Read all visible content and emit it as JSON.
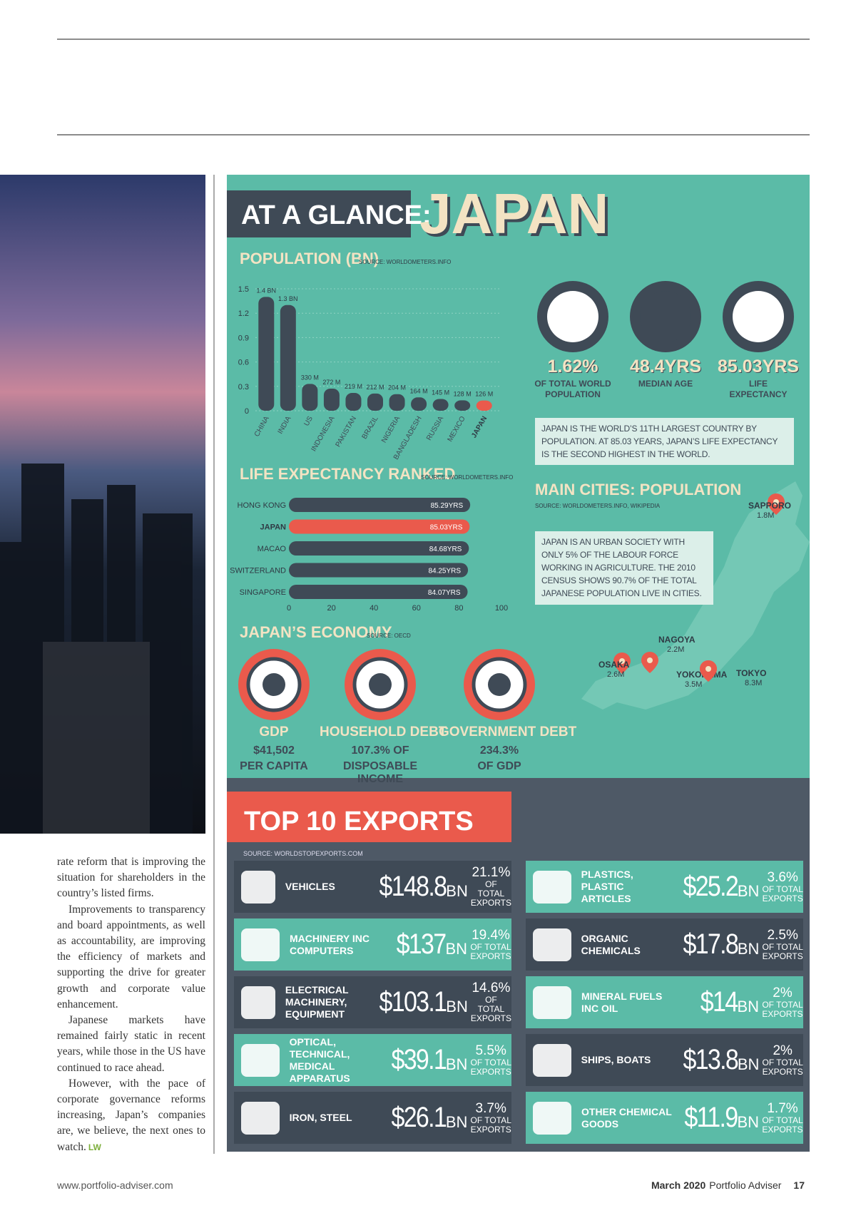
{
  "article": {
    "paragraphs": [
      "rate reform that is improving the situation for shareholders in the country’s listed firms.",
      "Improvements to transparency and board appointments, as well as accountability, are improving the efficiency of markets and supporting the drive for greater growth and corporate value enhancement.",
      "Japanese markets have remained fairly static in recent years, while those in the US have continued to race ahead.",
      "However, with the pace of corporate governance reforms increasing, Japan’s companies are, we believe, the next ones to watch."
    ],
    "signature": "LW"
  },
  "infographic": {
    "title_prefix": "AT A GLANCE:",
    "title": "JAPAN",
    "population": {
      "type": "bar",
      "title": "POPULATION (BN)",
      "source": "SOURCE: WORLDOMETERS.INFO",
      "categories": [
        "CHINA",
        "INDIA",
        "US",
        "INDONESIA",
        "PAKISTAN",
        "BRAZIL",
        "NIGERIA",
        "BANGLADESH",
        "RUSSIA",
        "MEXICO",
        "JAPAN"
      ],
      "values": [
        1.4,
        1.3,
        0.33,
        0.272,
        0.219,
        0.212,
        0.204,
        0.164,
        0.145,
        0.128,
        0.126
      ],
      "value_labels": [
        "1.4 BN",
        "1.3 BN",
        "330 M",
        "272 M",
        "219 M",
        "212 M",
        "204 M",
        "164 M",
        "145 M",
        "128 M",
        "126 M"
      ],
      "colors": [
        "#3f4a56",
        "#3f4a56",
        "#3f4a56",
        "#3f4a56",
        "#3f4a56",
        "#3f4a56",
        "#3f4a56",
        "#3f4a56",
        "#3f4a56",
        "#3f4a56",
        "#ea5a4c"
      ],
      "ylim": [
        0,
        1.5
      ],
      "yticks": [
        0,
        0.3,
        0.6,
        0.9,
        1.2,
        1.5
      ],
      "grid": true
    },
    "stats": [
      {
        "value": "1.62%",
        "label": "OF TOTAL WORLD POPULATION"
      },
      {
        "value": "48.4YRS",
        "label": "MEDIAN AGE"
      },
      {
        "value": "85.03YRS",
        "label": "LIFE EXPECTANCY"
      }
    ],
    "population_note": "JAPAN IS THE WORLD’S 11TH LARGEST COUNTRY BY POPULATION. AT 85.03 YEARS, JAPAN’S LIFE EXPECTANCY IS THE SECOND HIGHEST IN THE WORLD.",
    "life_expectancy": {
      "type": "hbar",
      "title": "LIFE EXPECTANCY RANKED",
      "source": "SOURCE: WORLDOMETERS.INFO",
      "categories": [
        "HONG KONG",
        "JAPAN",
        "MACAO",
        "SWITZERLAND",
        "SINGAPORE"
      ],
      "values": [
        85.29,
        85.03,
        84.68,
        84.25,
        84.07
      ],
      "value_labels": [
        "85.29YRS",
        "85.03YRS",
        "84.68YRS",
        "84.25YRS",
        "84.07YRS"
      ],
      "colors": [
        "#3f4a56",
        "#ea5a4c",
        "#3f4a56",
        "#3f4a56",
        "#3f4a56"
      ],
      "xlim": [
        0,
        100
      ],
      "xticks": [
        0,
        20,
        40,
        60,
        80,
        100
      ]
    },
    "economy": {
      "title": "JAPAN’S ECONOMY",
      "source": "SOURCE: OECD",
      "items": [
        {
          "label": "GDP",
          "value": "$41,502",
          "detail": "PER CAPITA"
        },
        {
          "label": "HOUSEHOLD DEBT",
          "value": "107.3% OF",
          "detail": "DISPOSABLE INCOME"
        },
        {
          "label": "GOVERNMENT DEBT",
          "value": "234.3%",
          "detail": "OF GDP"
        }
      ]
    },
    "cities": {
      "title": "MAIN CITIES: POPULATION",
      "source": "SOURCE: WORLDOMETERS.INFO, WIKIPEDIA",
      "note": "JAPAN IS AN URBAN SOCIETY WITH ONLY 5% OF THE LABOUR FORCE WORKING IN AGRICULTURE. THE 2010 CENSUS SHOWS 90.7% OF THE TOTAL JAPANESE POPULATION LIVE IN CITIES.",
      "items": [
        {
          "name": "SAPPORO",
          "population": "1.8M"
        },
        {
          "name": "OSAKA",
          "population": "2.6M"
        },
        {
          "name": "NAGOYA",
          "population": "2.2M"
        },
        {
          "name": "YOKOHAMA",
          "population": "3.5M"
        },
        {
          "name": "TOKYO",
          "population": "8.3M"
        }
      ]
    },
    "exports": {
      "title": "TOP 10 EXPORTS",
      "source": "SOURCE: WORLDSTOPEXPORTS.COM",
      "items": [
        {
          "name": "VEHICLES",
          "value": "$148.8",
          "unit": "BN",
          "share": "21.1%",
          "share_label": "OF TOTAL EXPORTS"
        },
        {
          "name": "MACHINERY INC COMPUTERS",
          "value": "$137",
          "unit": "BN",
          "share": "19.4%",
          "share_label": "OF TOTAL EXPORTS"
        },
        {
          "name": "ELECTRICAL MACHINERY, EQUIPMENT",
          "value": "$103.1",
          "unit": "BN",
          "share": "14.6%",
          "share_label": "OF TOTAL EXPORTS"
        },
        {
          "name": "OPTICAL, TECHNICAL, MEDICAL APPARATUS",
          "value": "$39.1",
          "unit": "BN",
          "share": "5.5%",
          "share_label": "OF TOTAL EXPORTS"
        },
        {
          "name": "IRON, STEEL",
          "value": "$26.1",
          "unit": "BN",
          "share": "3.7%",
          "share_label": "OF TOTAL EXPORTS"
        },
        {
          "name": "PLASTICS, PLASTIC ARTICLES",
          "value": "$25.2",
          "unit": "BN",
          "share": "3.6%",
          "share_label": "OF TOTAL EXPORTS"
        },
        {
          "name": "ORGANIC CHEMICALS",
          "value": "$17.8",
          "unit": "BN",
          "share": "2.5%",
          "share_label": "OF TOTAL EXPORTS"
        },
        {
          "name": "MINERAL FUELS INC OIL",
          "value": "$14",
          "unit": "BN",
          "share": "2%",
          "share_label": "OF TOTAL EXPORTS"
        },
        {
          "name": "SHIPS, BOATS",
          "value": "$13.8",
          "unit": "BN",
          "share": "2%",
          "share_label": "OF TOTAL EXPORTS"
        },
        {
          "name": "OTHER CHEMICAL GOODS",
          "value": "$11.9",
          "unit": "BN",
          "share": "1.7%",
          "share_label": "OF TOTAL EXPORTS"
        }
      ]
    }
  },
  "footer": {
    "url": "www.portfolio-adviser.com",
    "date": "March 2020",
    "publication": "Portfolio Adviser",
    "page": "17"
  }
}
